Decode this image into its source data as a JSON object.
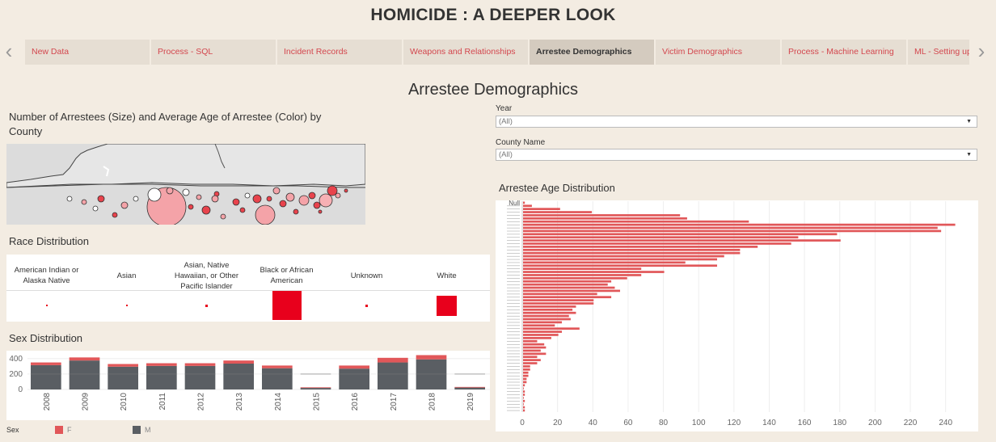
{
  "header": {
    "title": "HOMICIDE : A DEEPER LOOK"
  },
  "tabs": [
    {
      "label": "New Data",
      "active": false
    },
    {
      "label": "Process - SQL",
      "active": false
    },
    {
      "label": "Incident Records",
      "active": false
    },
    {
      "label": "Weapons and Relationships",
      "active": false
    },
    {
      "label": "Arrestee Demographics",
      "active": true
    },
    {
      "label": "Victim Demographics",
      "active": false
    },
    {
      "label": "Process - Machine Learning",
      "active": false
    },
    {
      "label": "ML - Setting up",
      "active": false
    }
  ],
  "nav": {
    "left_icon": "chevron-left-icon",
    "right_icon": "chevron-right-icon"
  },
  "dashboard": {
    "title": "Arrestee Demographics"
  },
  "map": {
    "title": "Number of Arrestees (Size) and Average Age of Arrestee (Color) by County"
  },
  "filters": {
    "year": {
      "label": "Year",
      "value": "(All)"
    },
    "county": {
      "label": "County Name",
      "value": "(All)"
    }
  },
  "race": {
    "title": "Race Distribution",
    "categories": [
      {
        "label": "American Indian or Alaska Native",
        "size": 2
      },
      {
        "label": "Asian",
        "size": 2
      },
      {
        "label": "Asian, Native Hawaiian, or Other Pacific Islander",
        "size": 3
      },
      {
        "label": "Black or African American",
        "size": 36
      },
      {
        "label": "Unknown",
        "size": 3
      },
      {
        "label": "White",
        "size": 25
      }
    ]
  },
  "chart_data": [
    {
      "type": "bar",
      "title": "Sex Distribution",
      "categories": [
        "2008",
        "2009",
        "2010",
        "2011",
        "2012",
        "2013",
        "2014",
        "2015",
        "2016",
        "2017",
        "2018",
        "2019"
      ],
      "series": [
        {
          "name": "M",
          "values": [
            315,
            375,
            295,
            305,
            305,
            335,
            275,
            20,
            270,
            350,
            390,
            25
          ]
        },
        {
          "name": "F",
          "values": [
            35,
            40,
            35,
            35,
            35,
            40,
            35,
            8,
            40,
            60,
            55,
            8
          ]
        }
      ],
      "ylim": [
        0,
        450
      ],
      "yticks": [
        0,
        200,
        400
      ],
      "legend_title": "Sex",
      "legend_labels": [
        "F",
        "M"
      ]
    },
    {
      "type": "bar",
      "orientation": "horizontal",
      "title": "Arrestee Age Distribution",
      "first_category": "Null",
      "values": [
        1,
        5,
        21,
        39,
        89,
        93,
        128,
        245,
        235,
        237,
        178,
        156,
        180,
        152,
        133,
        123,
        123,
        114,
        110,
        92,
        110,
        67,
        80,
        67,
        59,
        50,
        48,
        52,
        55,
        42,
        50,
        40,
        40,
        30,
        28,
        30,
        26,
        27,
        22,
        18,
        32,
        22,
        20,
        16,
        8,
        12,
        13,
        10,
        13,
        8,
        10,
        8,
        4,
        4,
        3,
        3,
        2,
        2,
        1,
        0,
        1,
        1,
        0,
        1,
        0,
        1,
        1
      ],
      "xlim": [
        0,
        250
      ],
      "xticks": [
        0,
        20,
        40,
        60,
        80,
        100,
        120,
        140,
        160,
        180,
        200,
        220,
        240
      ]
    }
  ],
  "colors": {
    "female": "#e15759",
    "male": "#5a5e63",
    "accent": "#d3474e",
    "race_square": "#e8001c"
  }
}
